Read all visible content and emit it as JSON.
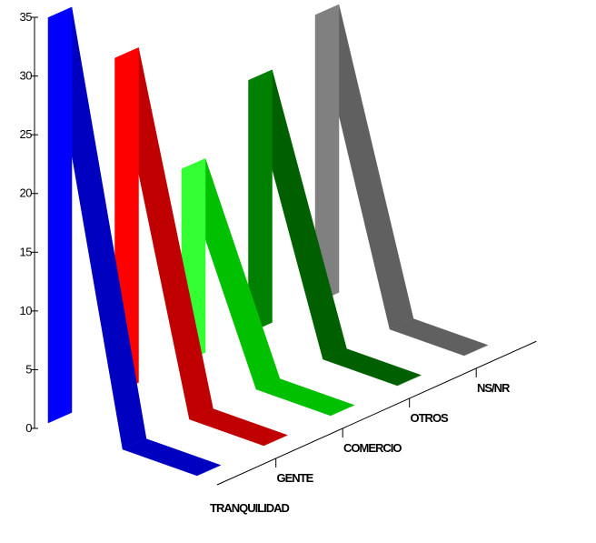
{
  "chart_data": {
    "type": "area",
    "variant": "3d-ribbon",
    "title": "",
    "xlabel": "",
    "ylabel": "",
    "ylim": [
      0,
      35
    ],
    "yticks": [
      0,
      5,
      10,
      15,
      20,
      25,
      30,
      35
    ],
    "grid": false,
    "legend": "none",
    "x": [
      "",
      "",
      ""
    ],
    "series": [
      {
        "category": "TRANQUILIDAD",
        "values": [
          34.5,
          0,
          0
        ],
        "colors": {
          "side": "#0000ff",
          "top": "#0000c0"
        }
      },
      {
        "category": "GENTE",
        "values": [
          28.5,
          0,
          0
        ],
        "colors": {
          "side": "#ff0000",
          "top": "#c00000"
        }
      },
      {
        "category": "COMERCIO",
        "values": [
          16.5,
          0,
          0
        ],
        "colors": {
          "side": "#33ff33",
          "top": "#00c000"
        }
      },
      {
        "category": "OTROS",
        "values": [
          21.5,
          0,
          0
        ],
        "colors": {
          "side": "#008000",
          "top": "#006000"
        }
      },
      {
        "category": "NS/NR",
        "values": [
          24.5,
          0,
          0
        ],
        "colors": {
          "side": "#808080",
          "top": "#606060"
        }
      }
    ]
  }
}
